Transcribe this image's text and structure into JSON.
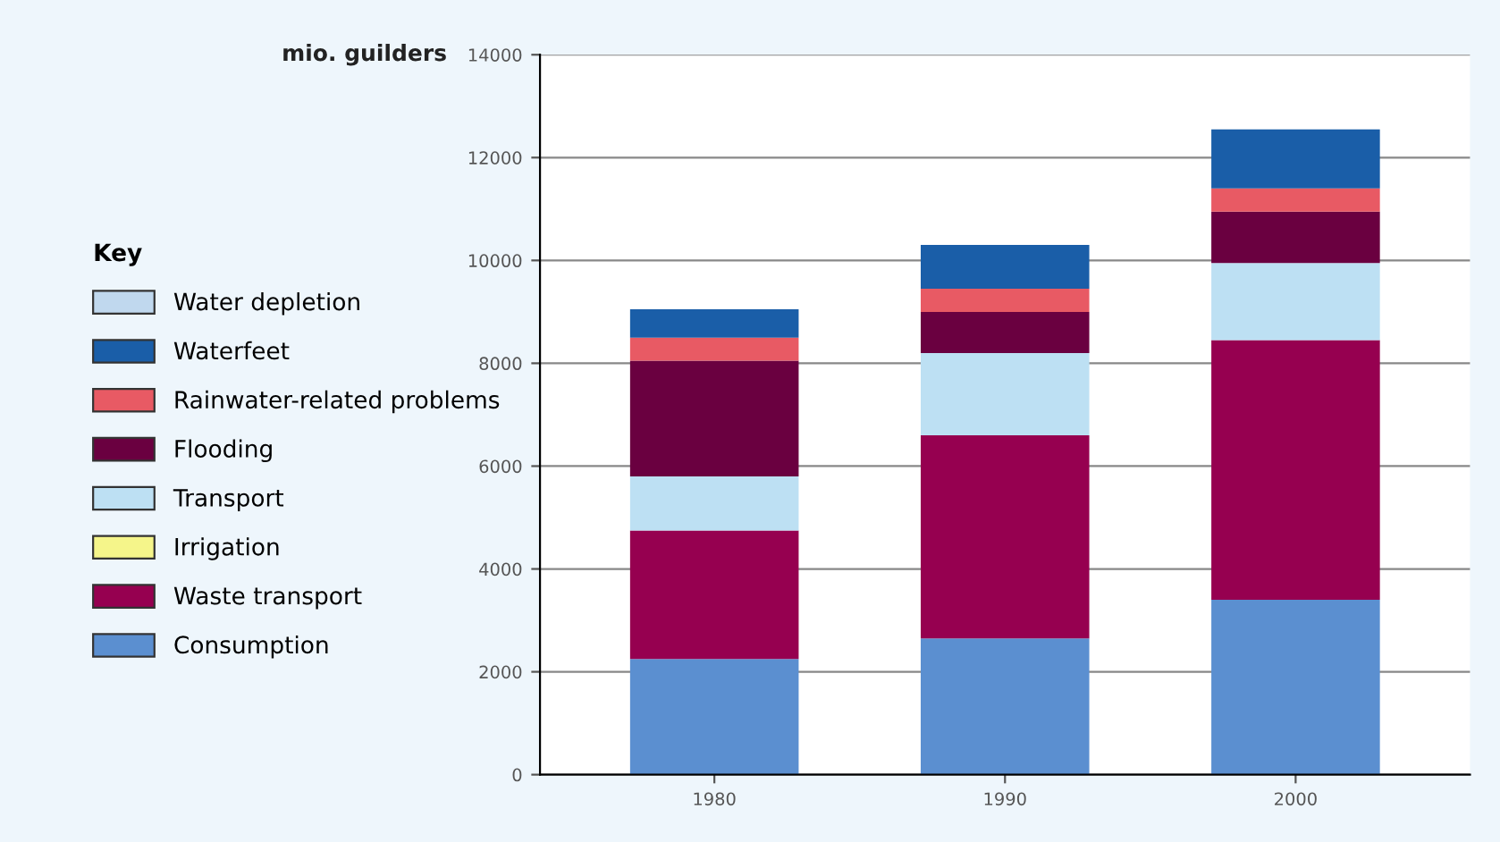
{
  "chart_data": {
    "type": "bar",
    "stacked": true,
    "ylabel": "mio. guilders",
    "legend_title": "Key",
    "categories": [
      "1980",
      "1990",
      "2000"
    ],
    "series": [
      {
        "name": "Consumption",
        "color": "#5b8fd0",
        "values": [
          2250,
          2650,
          3400
        ]
      },
      {
        "name": "Waste transport",
        "color": "#960050",
        "values": [
          2500,
          3950,
          5050
        ]
      },
      {
        "name": "Irrigation",
        "color": "#f5f58a",
        "values": [
          0,
          0,
          0
        ]
      },
      {
        "name": "Transport",
        "color": "#bde0f3",
        "values": [
          1050,
          1600,
          1500
        ]
      },
      {
        "name": "Flooding",
        "color": "#6a0040",
        "values": [
          2250,
          800,
          1000
        ]
      },
      {
        "name": "Rainwater-related problems",
        "color": "#e85a64",
        "values": [
          450,
          450,
          450
        ]
      },
      {
        "name": "Waterfeet",
        "color": "#1a5ea8",
        "values": [
          550,
          850,
          1150
        ]
      },
      {
        "name": "Water depletion",
        "color": "#c0d8ee",
        "values": [
          0,
          0,
          0
        ]
      }
    ],
    "ylim": [
      0,
      14000
    ],
    "yticks": [
      0,
      2000,
      4000,
      6000,
      8000,
      10000,
      12000,
      14000
    ],
    "grid": "y",
    "legend": "left"
  }
}
